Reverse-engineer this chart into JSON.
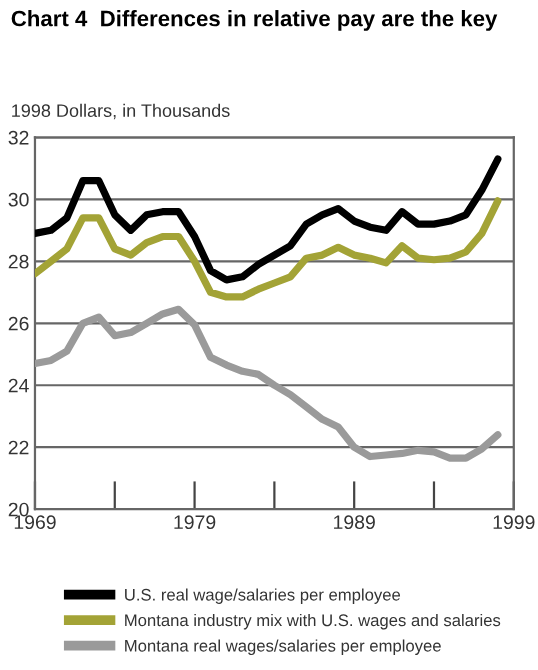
{
  "chart_data": {
    "type": "line",
    "title": "Chart 4  Differences in relative pay are the key",
    "ylabel": "1998 Dollars, in Thousands",
    "x": [
      1969,
      1970,
      1971,
      1972,
      1973,
      1974,
      1975,
      1976,
      1977,
      1978,
      1979,
      1980,
      1981,
      1982,
      1983,
      1984,
      1985,
      1986,
      1987,
      1988,
      1989,
      1990,
      1991,
      1992,
      1993,
      1994,
      1995,
      1996,
      1997,
      1998
    ],
    "series": [
      {
        "name": "U.S. real wage/salaries per employee",
        "color": "#000000",
        "values": [
          28.9,
          29.0,
          29.4,
          30.6,
          30.6,
          29.5,
          29.0,
          29.5,
          29.6,
          29.6,
          28.8,
          27.7,
          27.4,
          27.5,
          27.9,
          28.2,
          28.5,
          29.2,
          29.5,
          29.7,
          29.3,
          29.1,
          29.0,
          29.6,
          29.2,
          29.2,
          29.3,
          29.5,
          30.3,
          31.3
        ]
      },
      {
        "name": "Montana industry mix with U.S. wages and salaries",
        "color": "#a3a336",
        "values": [
          27.6,
          28.0,
          28.4,
          29.4,
          29.4,
          28.4,
          28.2,
          28.6,
          28.8,
          28.8,
          28.0,
          27.0,
          26.85,
          26.85,
          27.1,
          27.3,
          27.5,
          28.1,
          28.2,
          28.45,
          28.2,
          28.1,
          27.95,
          28.5,
          28.1,
          28.05,
          28.1,
          28.3,
          28.9,
          29.95
        ]
      },
      {
        "name": "Montana real wages/salaries per employee",
        "color": "#9a9a9a",
        "values": [
          24.7,
          24.8,
          25.1,
          26.0,
          26.2,
          25.6,
          25.7,
          26.0,
          26.3,
          26.45,
          25.95,
          24.9,
          24.65,
          24.45,
          24.35,
          24.0,
          23.7,
          23.3,
          22.9,
          22.65,
          22.0,
          21.7,
          21.75,
          21.8,
          21.9,
          21.85,
          21.65,
          21.65,
          21.95,
          22.4
        ]
      }
    ],
    "xlim": [
      1969,
      1999
    ],
    "xticks": [
      1969,
      {
        "value": 1974,
        "label": null
      },
      1979,
      {
        "value": 1984,
        "label": null
      },
      1989,
      {
        "value": 1994,
        "label": null
      },
      1999
    ],
    "ylim": [
      20,
      32
    ],
    "yticks": [
      20,
      22,
      24,
      26,
      28,
      30,
      32
    ],
    "grid": "y",
    "legend": "bottom",
    "line_style": "solid",
    "marker": "none"
  }
}
